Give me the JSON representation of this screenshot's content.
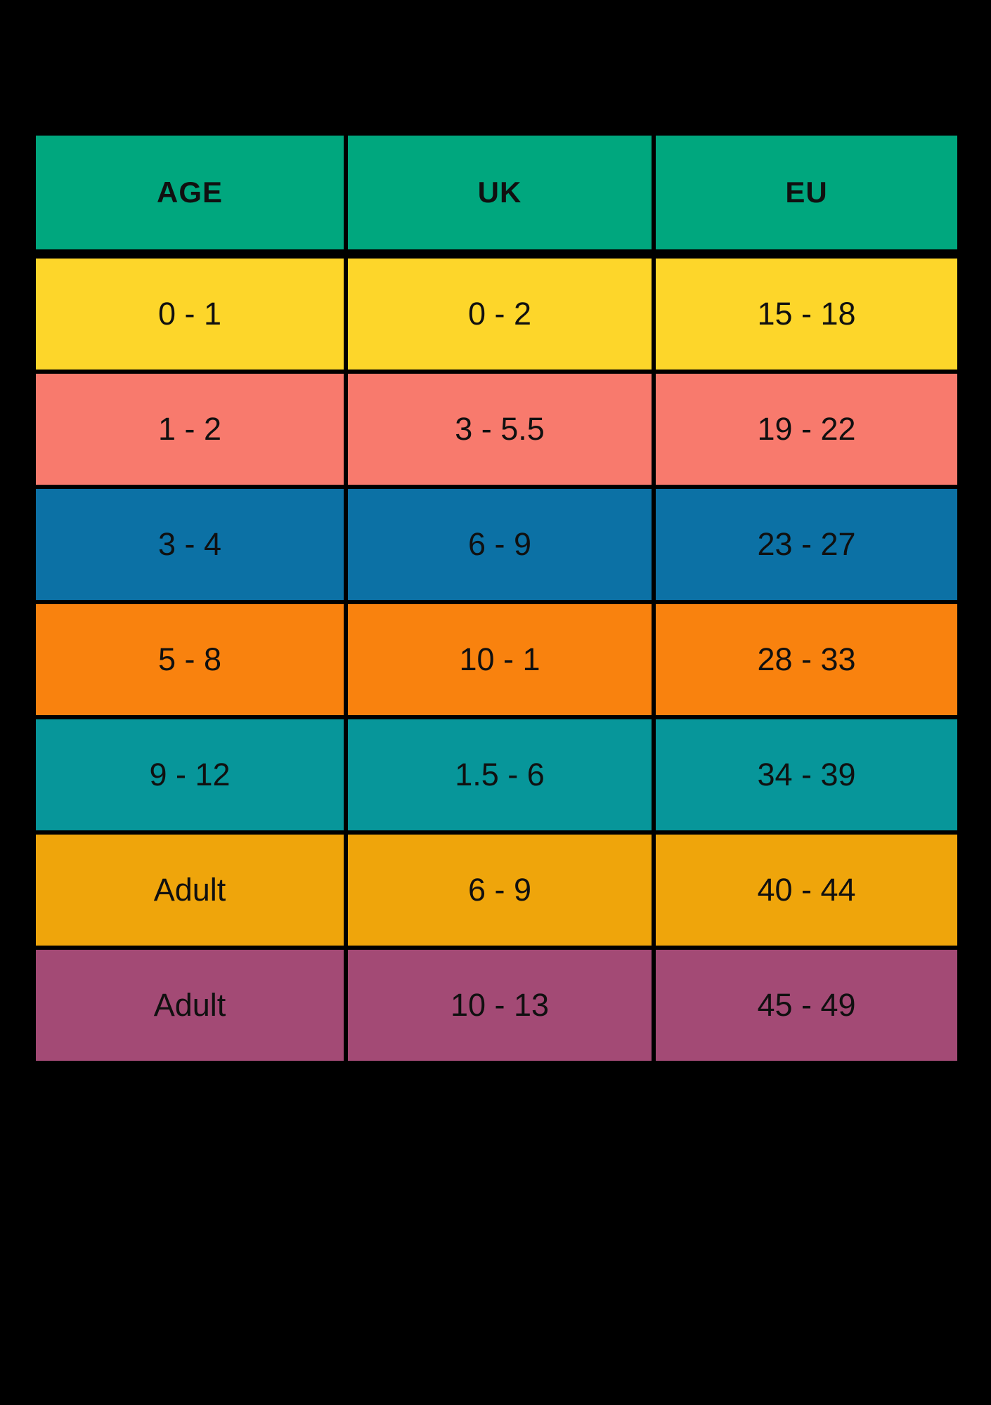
{
  "table": {
    "columns": [
      "AGE",
      "UK",
      "EU"
    ],
    "header_color": "#00A77E",
    "rows": [
      {
        "color": "#FDD62A",
        "cells": [
          "0 - 1",
          "0 - 2",
          "15 - 18"
        ]
      },
      {
        "color": "#F87A6D",
        "cells": [
          "1 - 2",
          "3 - 5.5",
          "19 - 22"
        ]
      },
      {
        "color": "#0C71A5",
        "cells": [
          "3 - 4",
          "6 - 9",
          "23 - 27"
        ]
      },
      {
        "color": "#F9820E",
        "cells": [
          "5 - 8",
          "10 - 1",
          "28 - 33"
        ]
      },
      {
        "color": "#07969A",
        "cells": [
          "9 - 12",
          "1.5 - 6",
          "34 - 39"
        ]
      },
      {
        "color": "#EFA50B",
        "cells": [
          "Adult",
          "6 - 9",
          "40 - 44"
        ]
      },
      {
        "color": "#A34A75",
        "cells": [
          "Adult",
          "10 - 13",
          "45 - 49"
        ]
      }
    ],
    "text_color": "#101010",
    "background_color": "#000000"
  }
}
